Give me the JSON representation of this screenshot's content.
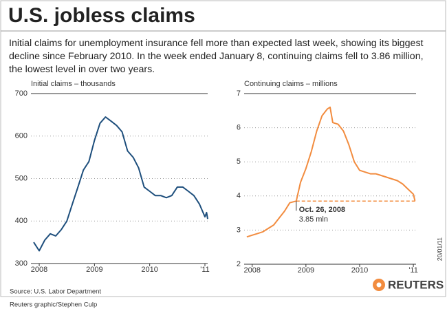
{
  "header": {
    "title": "U.S. jobless claims",
    "description": "Initial claims for unemployment insurance fell more than expected last week, showing its biggest decline since February 2010. In the week ended January 8, continuing claims fell to 3.86 million, the lowest level in over two years."
  },
  "footer": {
    "source": "Source: U.S. Labor Department",
    "credit": "Reuters graphic/Stephen Culp",
    "date": "20/01/11",
    "logo": "REUTERS"
  },
  "chart_data": [
    {
      "type": "line",
      "subtitle": "Initial claims – thousands",
      "color": "#1d4e7c",
      "grid": true,
      "x": [
        2007.9,
        2008.0,
        2008.1,
        2008.2,
        2008.3,
        2008.4,
        2008.5,
        2008.6,
        2008.7,
        2008.8,
        2008.9,
        2009.0,
        2009.1,
        2009.2,
        2009.3,
        2009.4,
        2009.5,
        2009.6,
        2009.7,
        2009.8,
        2009.9,
        2010.0,
        2010.1,
        2010.2,
        2010.3,
        2010.4,
        2010.5,
        2010.6,
        2010.7,
        2010.8,
        2010.9,
        2011.0,
        2011.03,
        2011.05
      ],
      "values": [
        350,
        330,
        355,
        370,
        365,
        380,
        400,
        440,
        480,
        520,
        540,
        590,
        630,
        645,
        635,
        625,
        610,
        565,
        550,
        525,
        480,
        470,
        460,
        460,
        455,
        460,
        480,
        480,
        470,
        460,
        440,
        410,
        420,
        405
      ],
      "xlim": [
        2007.85,
        2011.05
      ],
      "xticks": [
        2008,
        2009,
        2010,
        {
          "value": 2011,
          "label": "'11"
        }
      ],
      "ylim": [
        300,
        700
      ],
      "yticks": [
        300,
        400,
        500,
        600,
        700
      ]
    },
    {
      "type": "line",
      "subtitle": "Continuing claims – millions",
      "color": "#f28c3f",
      "grid": true,
      "x": [
        2007.9,
        2008.0,
        2008.1,
        2008.2,
        2008.3,
        2008.4,
        2008.5,
        2008.6,
        2008.7,
        2008.82,
        2008.9,
        2009.0,
        2009.1,
        2009.2,
        2009.3,
        2009.4,
        2009.45,
        2009.5,
        2009.6,
        2009.7,
        2009.8,
        2009.9,
        2010.0,
        2010.1,
        2010.2,
        2010.3,
        2010.4,
        2010.5,
        2010.6,
        2010.7,
        2010.8,
        2010.9,
        2011.0,
        2011.03
      ],
      "values": [
        2.8,
        2.85,
        2.9,
        2.95,
        3.05,
        3.15,
        3.35,
        3.55,
        3.8,
        3.85,
        4.4,
        4.8,
        5.3,
        5.9,
        6.35,
        6.55,
        6.6,
        6.15,
        6.1,
        5.9,
        5.5,
        5.0,
        4.75,
        4.7,
        4.65,
        4.65,
        4.6,
        4.55,
        4.5,
        4.45,
        4.35,
        4.2,
        4.05,
        3.86
      ],
      "xlim": [
        2007.85,
        2011.05
      ],
      "xticks": [
        2008,
        2009,
        2010,
        {
          "value": 2011,
          "label": "'11"
        }
      ],
      "ylim": [
        2,
        7
      ],
      "yticks": [
        2,
        3,
        4,
        5,
        6,
        7
      ],
      "annotations": [
        {
          "text": "Oct. 26, 2008",
          "value_label": "3.85 mln",
          "x": 2008.82,
          "y": 3.85
        }
      ]
    }
  ]
}
